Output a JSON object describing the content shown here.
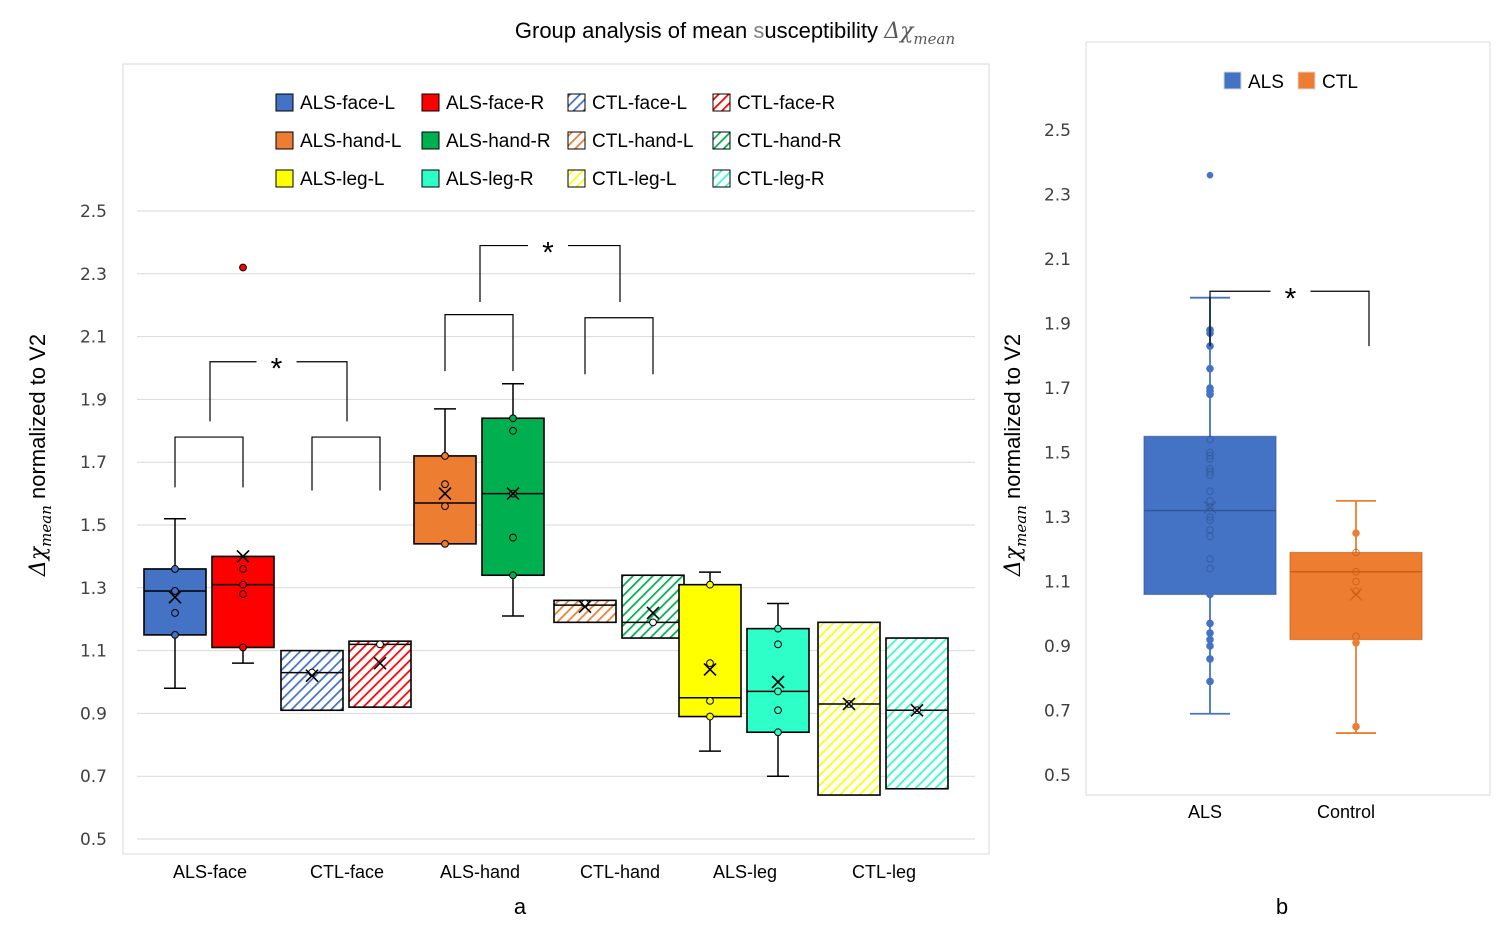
{
  "title": {
    "prefix": "Group analysis of mean ",
    "highlight": "s",
    "rest": "usceptibility ",
    "symbol": "Δχ",
    "subscript": "mean"
  },
  "panel_labels": {
    "a": "a",
    "b": "b"
  },
  "chart_data": [
    {
      "id": "a",
      "type": "box",
      "title": "Group analysis of mean susceptibility Δχmean",
      "ylabel": "Δχmean normalized to V2",
      "ylabel_symbol": "Δχ",
      "ylabel_sub": "mean",
      "ylabel_rest": " normalized to V2",
      "xlabel": "",
      "ylim": [
        0.5,
        2.5
      ],
      "yticks": [
        "0.5",
        "0.7",
        "0.9",
        "1.1",
        "1.3",
        "1.5",
        "1.7",
        "1.9",
        "2.1",
        "2.3",
        "2.5"
      ],
      "grid": true,
      "legend_position": "top",
      "categories": [
        "ALS-face",
        "CTL-face",
        "ALS-hand",
        "CTL-hand",
        "ALS-leg",
        "CTL-leg"
      ],
      "series": [
        {
          "name": "ALS-face-L",
          "category": 0,
          "side": 0,
          "color": "#4472C4",
          "hatched": false,
          "whisker_low": 0.98,
          "q1": 1.15,
          "median": 1.29,
          "q3": 1.36,
          "whisker_high": 1.52,
          "mean": 1.27,
          "points": [
            1.36,
            1.29,
            1.22,
            1.15
          ],
          "outliers": []
        },
        {
          "name": "ALS-face-R",
          "category": 0,
          "side": 1,
          "color": "#FF0000",
          "hatched": false,
          "whisker_low": 1.06,
          "q1": 1.11,
          "median": 1.31,
          "q3": 1.4,
          "whisker_high": 1.4,
          "mean": 1.4,
          "points": [
            1.36,
            1.31,
            1.28,
            1.11
          ],
          "outliers": [
            2.32
          ]
        },
        {
          "name": "CTL-face-L",
          "category": 1,
          "side": 0,
          "color": "#4472C4",
          "hatched": true,
          "whisker_low": 0.91,
          "q1": 0.91,
          "median": 1.03,
          "q3": 1.1,
          "whisker_high": 1.1,
          "mean": 1.02,
          "points": [
            1.03
          ],
          "outliers": []
        },
        {
          "name": "CTL-face-R",
          "category": 1,
          "side": 1,
          "color": "#FF0000",
          "hatched": true,
          "whisker_low": 0.92,
          "q1": 0.92,
          "median": 1.12,
          "q3": 1.13,
          "whisker_high": 1.13,
          "mean": 1.06,
          "points": [
            1.12
          ],
          "outliers": []
        },
        {
          "name": "ALS-hand-L",
          "category": 2,
          "side": 0,
          "color": "#ED7D31",
          "hatched": false,
          "whisker_low": 1.44,
          "q1": 1.44,
          "median": 1.57,
          "q3": 1.72,
          "whisker_high": 1.87,
          "mean": 1.6,
          "points": [
            1.72,
            1.63,
            1.56,
            1.44
          ],
          "outliers": []
        },
        {
          "name": "ALS-hand-R",
          "category": 2,
          "side": 1,
          "color": "#00B050",
          "hatched": false,
          "whisker_low": 1.21,
          "q1": 1.34,
          "median": 1.6,
          "q3": 1.84,
          "whisker_high": 1.95,
          "mean": 1.6,
          "points": [
            1.84,
            1.8,
            1.6,
            1.46,
            1.34
          ],
          "outliers": []
        },
        {
          "name": "CTL-hand-L",
          "category": 3,
          "side": 0,
          "color": "#ED7D31",
          "hatched": true,
          "whisker_low": 1.19,
          "q1": 1.19,
          "median": 1.245,
          "q3": 1.26,
          "whisker_high": 1.26,
          "mean": 1.24,
          "points": [
            1.25
          ],
          "outliers": []
        },
        {
          "name": "CTL-hand-R",
          "category": 3,
          "side": 1,
          "color": "#00B050",
          "hatched": true,
          "whisker_low": 1.14,
          "q1": 1.14,
          "median": 1.19,
          "q3": 1.34,
          "whisker_high": 1.34,
          "mean": 1.22,
          "points": [
            1.19
          ],
          "outliers": []
        },
        {
          "name": "ALS-leg-L",
          "category": 4,
          "side": 0,
          "color": "#FFFF00",
          "hatched": false,
          "whisker_low": 0.78,
          "q1": 0.89,
          "median": 0.95,
          "q3": 1.31,
          "whisker_high": 1.35,
          "mean": 1.04,
          "points": [
            1.31,
            1.06,
            0.94,
            0.89
          ],
          "outliers": []
        },
        {
          "name": "ALS-leg-R",
          "category": 4,
          "side": 1,
          "color": "#2EFFC8",
          "hatched": false,
          "whisker_low": 0.7,
          "q1": 0.84,
          "median": 0.97,
          "q3": 1.17,
          "whisker_high": 1.25,
          "mean": 1.0,
          "points": [
            1.17,
            1.12,
            0.97,
            0.91,
            0.84
          ],
          "outliers": []
        },
        {
          "name": "CTL-leg-L",
          "category": 5,
          "side": 0,
          "color": "#FFFF00",
          "hatched": true,
          "whisker_low": 0.64,
          "q1": 0.64,
          "median": 0.93,
          "q3": 1.19,
          "whisker_high": 1.19,
          "mean": 0.93,
          "points": [
            0.93
          ],
          "outliers": []
        },
        {
          "name": "CTL-leg-R",
          "category": 5,
          "side": 1,
          "color": "#2EFFC8",
          "hatched": true,
          "whisker_low": 0.66,
          "q1": 0.66,
          "median": 0.91,
          "q3": 1.14,
          "whisker_high": 1.14,
          "mean": 0.91,
          "points": [
            0.91
          ],
          "outliers": []
        }
      ],
      "annotations": [
        {
          "type": "bracket",
          "from": "ALS-face-L",
          "to": "ALS-face-R",
          "level": 1.78,
          "drop": 1.62
        },
        {
          "type": "bracket",
          "from": "CTL-face-L",
          "to": "CTL-face-R",
          "level": 1.78,
          "drop": 1.61
        },
        {
          "type": "significance",
          "from": "ALS-face",
          "to": "CTL-face",
          "level": 2.02,
          "drop": 1.83,
          "label": "*"
        },
        {
          "type": "bracket",
          "from": "ALS-hand-L",
          "to": "ALS-hand-R",
          "level": 2.17,
          "drop": 1.99
        },
        {
          "type": "bracket",
          "from": "CTL-hand-L",
          "to": "CTL-hand-R",
          "level": 2.16,
          "drop": 1.98
        },
        {
          "type": "significance",
          "from": "ALS-hand",
          "to": "CTL-hand",
          "level": 2.39,
          "drop": 2.21,
          "label": "*"
        }
      ]
    },
    {
      "id": "b",
      "type": "box",
      "ylabel": "Δχmean normalized to V2",
      "ylabel_symbol": "Δχ",
      "ylabel_sub": "mean",
      "ylabel_rest": " normalized to V2",
      "ylim": [
        0.5,
        2.5
      ],
      "yticks": [
        "0.5",
        "0.7",
        "0.9",
        "1.1",
        "1.3",
        "1.5",
        "1.7",
        "1.9",
        "2.1",
        "2.3",
        "2.5"
      ],
      "grid": false,
      "legend_position": "top",
      "legend": [
        {
          "name": "ALS",
          "color": "#4472C4"
        },
        {
          "name": "CTL",
          "color": "#ED7D31"
        }
      ],
      "categories": [
        "ALS",
        "Control"
      ],
      "series": [
        {
          "name": "ALS",
          "color": "#4472C4",
          "whisker_low": 0.69,
          "q1": 1.06,
          "median": 1.32,
          "q3": 1.55,
          "whisker_high": 1.98,
          "mean": 1.33,
          "points": [
            1.88,
            1.87,
            1.83,
            1.76,
            1.7,
            1.69,
            1.68,
            1.54,
            1.5,
            1.49,
            1.48,
            1.45,
            1.44,
            1.43,
            1.38,
            1.35,
            1.33,
            1.3,
            1.29,
            1.26,
            1.24,
            1.17,
            1.14,
            1.06,
            0.97,
            0.94,
            0.92,
            0.9,
            0.86,
            0.79
          ],
          "outliers": [
            2.36
          ]
        },
        {
          "name": "Control",
          "color": "#ED7D31",
          "whisker_low": 0.63,
          "q1": 0.92,
          "median": 1.13,
          "q3": 1.19,
          "whisker_high": 1.35,
          "mean": 1.06,
          "points": [
            1.25,
            1.19,
            1.13,
            1.1,
            1.07,
            0.93,
            0.91,
            0.65
          ],
          "outliers": []
        }
      ],
      "annotations": [
        {
          "type": "significance",
          "from": "ALS",
          "to": "Control",
          "level": 2.0,
          "drop": 1.83,
          "label": "*"
        }
      ]
    }
  ]
}
